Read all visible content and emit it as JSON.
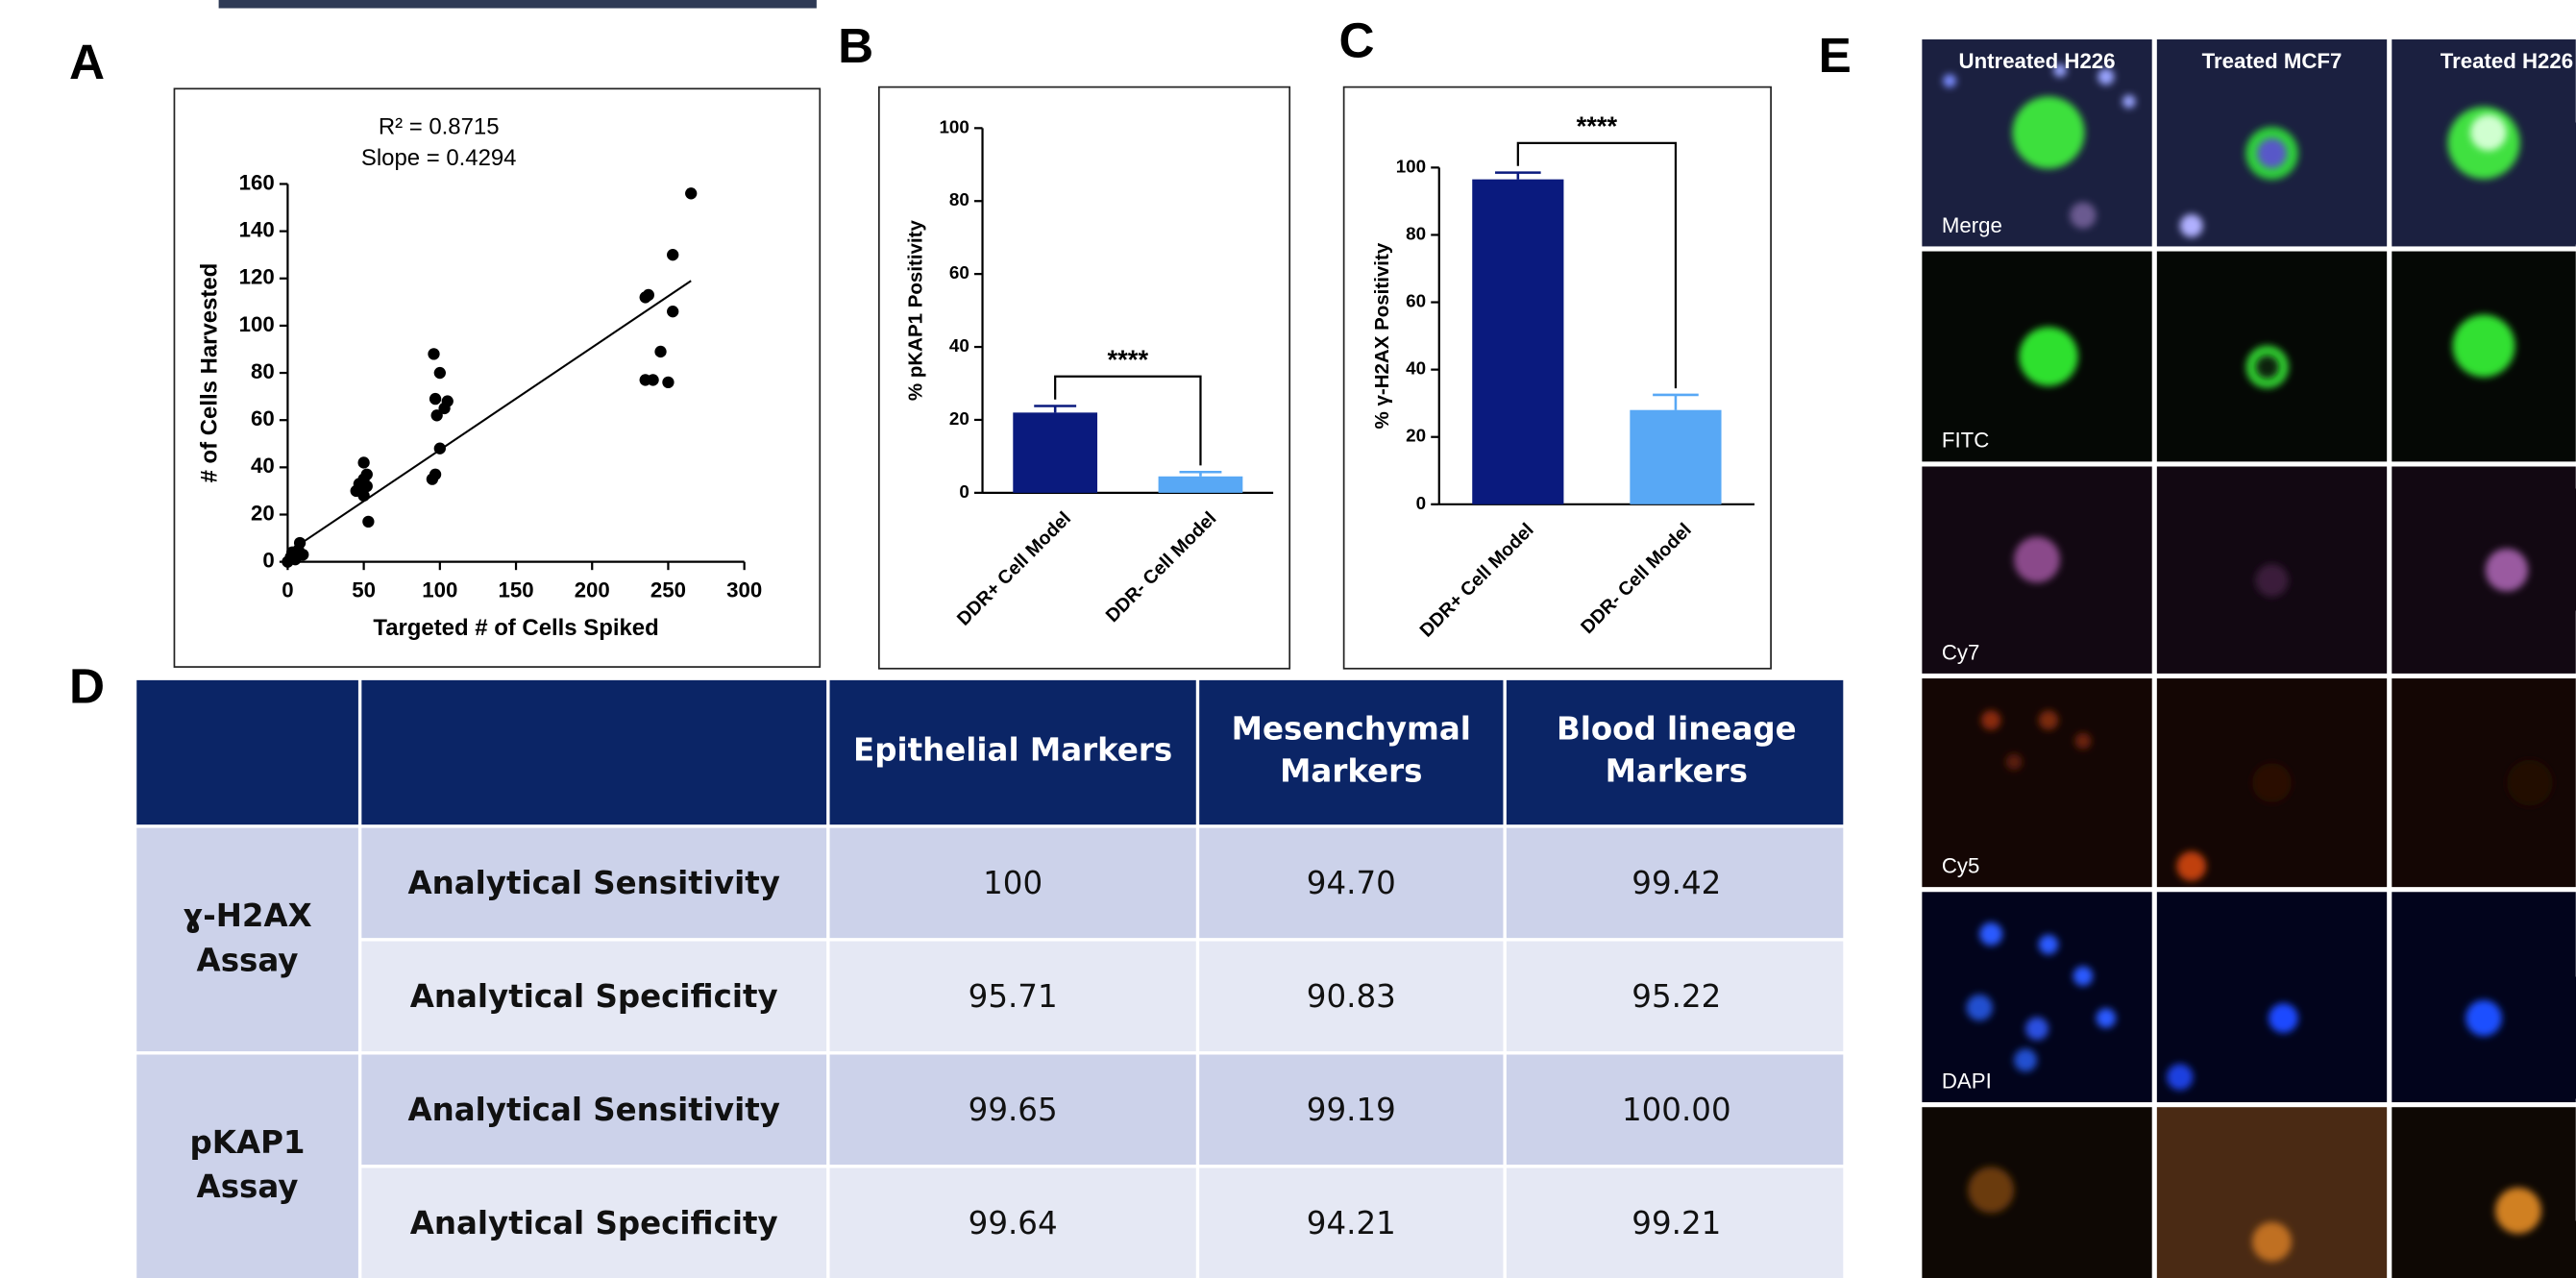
{
  "panel_labels": [
    "A",
    "B",
    "C",
    "D",
    "E"
  ],
  "chart_data": [
    {
      "type": "scatter",
      "annotations": [
        "R² = 0.8715",
        "Slope = 0.4294"
      ],
      "x_label": "Targeted # of Cells Spiked",
      "y_label": "# of Cells Harvested",
      "x": [
        0,
        2,
        3,
        5,
        5,
        7,
        8,
        10,
        45,
        47,
        48,
        50,
        50,
        50,
        52,
        52,
        53,
        95,
        96,
        97,
        97,
        98,
        100,
        100,
        103,
        105,
        235,
        237,
        235,
        240,
        245,
        250,
        253,
        253,
        265
      ],
      "values": [
        0,
        2,
        4,
        1,
        3,
        5,
        8,
        3,
        30,
        33,
        30,
        35,
        42,
        28,
        37,
        32,
        17,
        35,
        88,
        69,
        37,
        62,
        80,
        48,
        65,
        68,
        112,
        113,
        77,
        77,
        89,
        76,
        106,
        130,
        156
      ],
      "color": "#000000",
      "fit_line": {
        "x": [
          0,
          265
        ],
        "values": [
          4,
          119
        ]
      },
      "xlim": [
        0,
        300
      ],
      "xticks": [
        0,
        50,
        100,
        150,
        200,
        250,
        300
      ],
      "ylim": [
        0,
        160
      ],
      "yticks": [
        0,
        20,
        40,
        60,
        80,
        100,
        120,
        140,
        160
      ]
    },
    {
      "type": "bar",
      "y_label": "% pKAP1 Positivity",
      "categories": [
        "DDR+ Cell Model",
        "DDR- Cell Model"
      ],
      "values": [
        22,
        4.5
      ],
      "errors": [
        1.8,
        1.2
      ],
      "colors": [
        "#0a1a7e",
        "#58a8f5"
      ],
      "significance": "****",
      "ylim": [
        0,
        100
      ],
      "yticks": [
        0,
        20,
        40,
        60,
        80,
        100
      ]
    },
    {
      "type": "bar",
      "y_label": "% γ-H2AX Positivity",
      "categories": [
        "DDR+ Cell Model",
        "DDR- Cell Model"
      ],
      "values": [
        96.5,
        28
      ],
      "errors": [
        2,
        4.5
      ],
      "colors": [
        "#0a1a7e",
        "#58a8f5"
      ],
      "significance": "****",
      "ylim": [
        0,
        100
      ],
      "yticks": [
        0,
        20,
        40,
        60,
        80,
        100
      ]
    }
  ],
  "table": {
    "columns": [
      "Epithelial Markers",
      "Mesenchymal Markers",
      "Blood lineage Markers"
    ],
    "groups": [
      {
        "name": "ɣ-H2AX Assay",
        "rows": [
          {
            "metric": "Analytical Sensitivity",
            "values": [
              "100",
              "94.70",
              "99.42"
            ]
          },
          {
            "metric": "Analytical Specificity",
            "values": [
              "95.71",
              "90.83",
              "95.22"
            ]
          }
        ]
      },
      {
        "name": "pKAP1 Assay",
        "rows": [
          {
            "metric": "Analytical Sensitivity",
            "values": [
              "99.65",
              "99.19",
              "100.00"
            ]
          },
          {
            "metric": "Analytical Specificity",
            "values": [
              "99.64",
              "94.21",
              "99.21"
            ]
          }
        ]
      }
    ]
  },
  "images": {
    "columns": [
      "Untreated H226",
      "Treated MCF7",
      "Treated H226"
    ],
    "rows": [
      "Merge",
      "FITC",
      "Cy7",
      "Cy5",
      "DAPI",
      null
    ]
  }
}
